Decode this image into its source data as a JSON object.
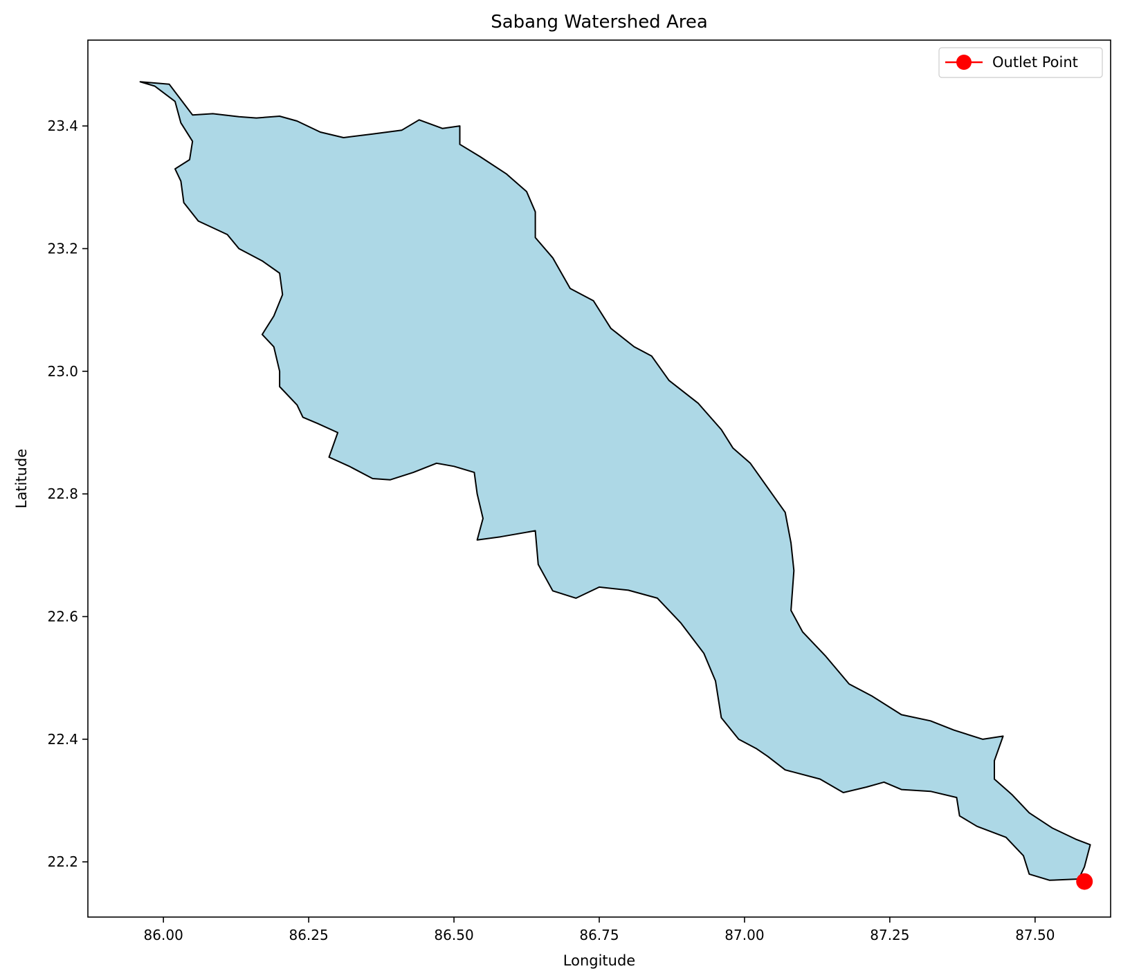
{
  "chart_data": {
    "type": "map",
    "title": "Sabang Watershed Area",
    "xlabel": "Longitude",
    "ylabel": "Latitude",
    "xlim": [
      85.87,
      87.63
    ],
    "ylim": [
      22.11,
      23.54
    ],
    "xticks": [
      86.0,
      86.25,
      86.5,
      86.75,
      87.0,
      87.25,
      87.5
    ],
    "xtick_labels": [
      "86.00",
      "86.25",
      "86.50",
      "86.75",
      "87.00",
      "87.25",
      "87.50"
    ],
    "yticks": [
      22.2,
      22.4,
      22.6,
      22.8,
      23.0,
      23.2,
      23.4
    ],
    "ytick_labels": [
      "22.2",
      "22.4",
      "22.6",
      "22.8",
      "23.0",
      "23.2",
      "23.4"
    ],
    "grid": false,
    "legend": {
      "placement": "top-right",
      "entries": [
        "Outlet Point"
      ]
    },
    "colors": {
      "fill": "#add8e6",
      "edge": "#000000",
      "outlet": "#ff0000"
    },
    "outlet": {
      "name": "Outlet Point",
      "lon": 87.585,
      "lat": 22.168
    },
    "boundary": [
      [
        85.96,
        23.472
      ],
      [
        86.01,
        23.468
      ],
      [
        86.03,
        23.443
      ],
      [
        86.05,
        23.418
      ],
      [
        86.085,
        23.42
      ],
      [
        86.13,
        23.415
      ],
      [
        86.16,
        23.413
      ],
      [
        86.2,
        23.416
      ],
      [
        86.23,
        23.408
      ],
      [
        86.27,
        23.39
      ],
      [
        86.31,
        23.381
      ],
      [
        86.36,
        23.387
      ],
      [
        86.41,
        23.393
      ],
      [
        86.44,
        23.41
      ],
      [
        86.48,
        23.396
      ],
      [
        86.51,
        23.4
      ],
      [
        86.51,
        23.37
      ],
      [
        86.545,
        23.35
      ],
      [
        86.59,
        23.322
      ],
      [
        86.625,
        23.293
      ],
      [
        86.64,
        23.26
      ],
      [
        86.64,
        23.218
      ],
      [
        86.67,
        23.185
      ],
      [
        86.7,
        23.135
      ],
      [
        86.74,
        23.115
      ],
      [
        86.77,
        23.07
      ],
      [
        86.81,
        23.04
      ],
      [
        86.84,
        23.025
      ],
      [
        86.87,
        22.985
      ],
      [
        86.92,
        22.948
      ],
      [
        86.96,
        22.905
      ],
      [
        86.98,
        22.875
      ],
      [
        87.01,
        22.85
      ],
      [
        87.04,
        22.81
      ],
      [
        87.07,
        22.77
      ],
      [
        87.08,
        22.72
      ],
      [
        87.085,
        22.675
      ],
      [
        87.08,
        22.61
      ],
      [
        87.1,
        22.575
      ],
      [
        87.14,
        22.535
      ],
      [
        87.18,
        22.49
      ],
      [
        87.22,
        22.47
      ],
      [
        87.27,
        22.44
      ],
      [
        87.32,
        22.43
      ],
      [
        87.36,
        22.415
      ],
      [
        87.41,
        22.4
      ],
      [
        87.445,
        22.405
      ],
      [
        87.43,
        22.365
      ],
      [
        87.43,
        22.335
      ],
      [
        87.46,
        22.31
      ],
      [
        87.49,
        22.28
      ],
      [
        87.53,
        22.255
      ],
      [
        87.57,
        22.237
      ],
      [
        87.595,
        22.228
      ],
      [
        87.585,
        22.192
      ],
      [
        87.575,
        22.172
      ],
      [
        87.525,
        22.17
      ],
      [
        87.49,
        22.18
      ],
      [
        87.48,
        22.21
      ],
      [
        87.45,
        22.24
      ],
      [
        87.4,
        22.258
      ],
      [
        87.37,
        22.275
      ],
      [
        87.365,
        22.305
      ],
      [
        87.32,
        22.315
      ],
      [
        87.27,
        22.318
      ],
      [
        87.24,
        22.33
      ],
      [
        87.21,
        22.322
      ],
      [
        87.17,
        22.313
      ],
      [
        87.13,
        22.335
      ],
      [
        87.07,
        22.35
      ],
      [
        87.04,
        22.372
      ],
      [
        87.02,
        22.385
      ],
      [
        86.99,
        22.4
      ],
      [
        86.96,
        22.435
      ],
      [
        86.95,
        22.495
      ],
      [
        86.93,
        22.54
      ],
      [
        86.89,
        22.59
      ],
      [
        86.85,
        22.63
      ],
      [
        86.8,
        22.643
      ],
      [
        86.75,
        22.648
      ],
      [
        86.71,
        22.63
      ],
      [
        86.67,
        22.642
      ],
      [
        86.645,
        22.685
      ],
      [
        86.64,
        22.74
      ],
      [
        86.58,
        22.73
      ],
      [
        86.54,
        22.725
      ],
      [
        86.55,
        22.76
      ],
      [
        86.54,
        22.8
      ],
      [
        86.535,
        22.835
      ],
      [
        86.5,
        22.845
      ],
      [
        86.47,
        22.85
      ],
      [
        86.43,
        22.835
      ],
      [
        86.39,
        22.823
      ],
      [
        86.36,
        22.825
      ],
      [
        86.32,
        22.845
      ],
      [
        86.285,
        22.86
      ],
      [
        86.3,
        22.9
      ],
      [
        86.265,
        22.915
      ],
      [
        86.24,
        22.925
      ],
      [
        86.23,
        22.945
      ],
      [
        86.2,
        22.975
      ],
      [
        86.2,
        23.0
      ],
      [
        86.19,
        23.04
      ],
      [
        86.17,
        23.06
      ],
      [
        86.19,
        23.09
      ],
      [
        86.205,
        23.125
      ],
      [
        86.2,
        23.16
      ],
      [
        86.17,
        23.18
      ],
      [
        86.13,
        23.2
      ],
      [
        86.11,
        23.223
      ],
      [
        86.06,
        23.245
      ],
      [
        86.035,
        23.275
      ],
      [
        86.03,
        23.31
      ],
      [
        86.02,
        23.33
      ],
      [
        86.045,
        23.345
      ],
      [
        86.05,
        23.375
      ],
      [
        86.03,
        23.405
      ],
      [
        86.02,
        23.44
      ],
      [
        85.985,
        23.465
      ],
      [
        85.96,
        23.472
      ]
    ]
  }
}
